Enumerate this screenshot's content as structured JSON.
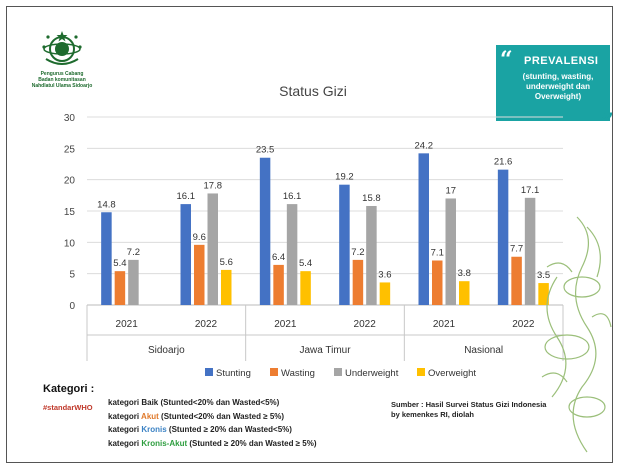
{
  "logo": {
    "text": "Pengurus Cabang\nBadan komunitasan\nNahdlatul Ulama Sidoarjo"
  },
  "callout": {
    "title": "PREVALENSI",
    "subtitle": "(stunting, wasting, underweight dan Overweight)",
    "quote_open": "“",
    "quote_close": "”"
  },
  "chart_data": {
    "type": "bar",
    "title": "Status Gizi",
    "ylim": [
      0,
      30
    ],
    "yticks": [
      "0",
      "5",
      "10",
      "15",
      "20",
      "25",
      "30"
    ],
    "grid": true,
    "legend_position": "bottom",
    "groups": [
      {
        "region": "Sidoarjo",
        "years": [
          "2021",
          "2022"
        ]
      },
      {
        "region": "Jawa Timur",
        "years": [
          "2021",
          "2022"
        ]
      },
      {
        "region": "Nasional",
        "years": [
          "2021",
          "2022"
        ]
      }
    ],
    "categories": [
      "2021",
      "2022",
      "2021",
      "2022",
      "2021",
      "2022"
    ],
    "series": [
      {
        "name": "Stunting",
        "color": "#4472c4",
        "values": [
          14.8,
          16.1,
          23.5,
          19.2,
          24.2,
          21.6
        ],
        "labels": [
          "14.8",
          "16.1",
          "23.5",
          "19.2",
          "24.2",
          "21.6"
        ]
      },
      {
        "name": "Wasting",
        "color": "#ed7d31",
        "values": [
          5.4,
          9.6,
          6.4,
          7.2,
          7.1,
          7.7
        ],
        "labels": [
          "5.4",
          "9.6",
          "6.4",
          "7.2",
          "7.1",
          "7.7"
        ]
      },
      {
        "name": "Underweight",
        "color": "#a5a5a5",
        "values": [
          7.2,
          17.8,
          16.1,
          15.8,
          17,
          17.1
        ],
        "labels": [
          "7.2",
          "17.8",
          "16.1",
          "15.8",
          "17",
          "17.1"
        ]
      },
      {
        "name": "Overweight",
        "color": "#ffc000",
        "values": [
          null,
          5.6,
          5.4,
          3.6,
          3.8,
          3.5
        ],
        "labels": [
          "",
          "5.6",
          "5.4",
          "3.6",
          "3.8",
          "3.5"
        ]
      }
    ]
  },
  "kategori": {
    "heading": "Kategori :",
    "hashtag": "#standarWHO",
    "items": [
      {
        "prefix": "kategori ",
        "name": "Baik",
        "rest": " (Stunted<20% dan Wasted<5%)"
      },
      {
        "prefix": "kategori ",
        "name": "Akut",
        "rest": " (Stunted<20% dan Wasted ≥ 5%)"
      },
      {
        "prefix": "kategori ",
        "name": "Kronis",
        "rest": " (Stunted ≥ 20% dan Wasted<5%)"
      },
      {
        "prefix": "kategori ",
        "name": "Kronis-Akut",
        "rest": " (Stunted ≥ 20% dan Wasted ≥ 5%)"
      }
    ]
  },
  "source": "Sumber : Hasil Survei Status Gizi Indonesia by kemenkes RI, diolah"
}
